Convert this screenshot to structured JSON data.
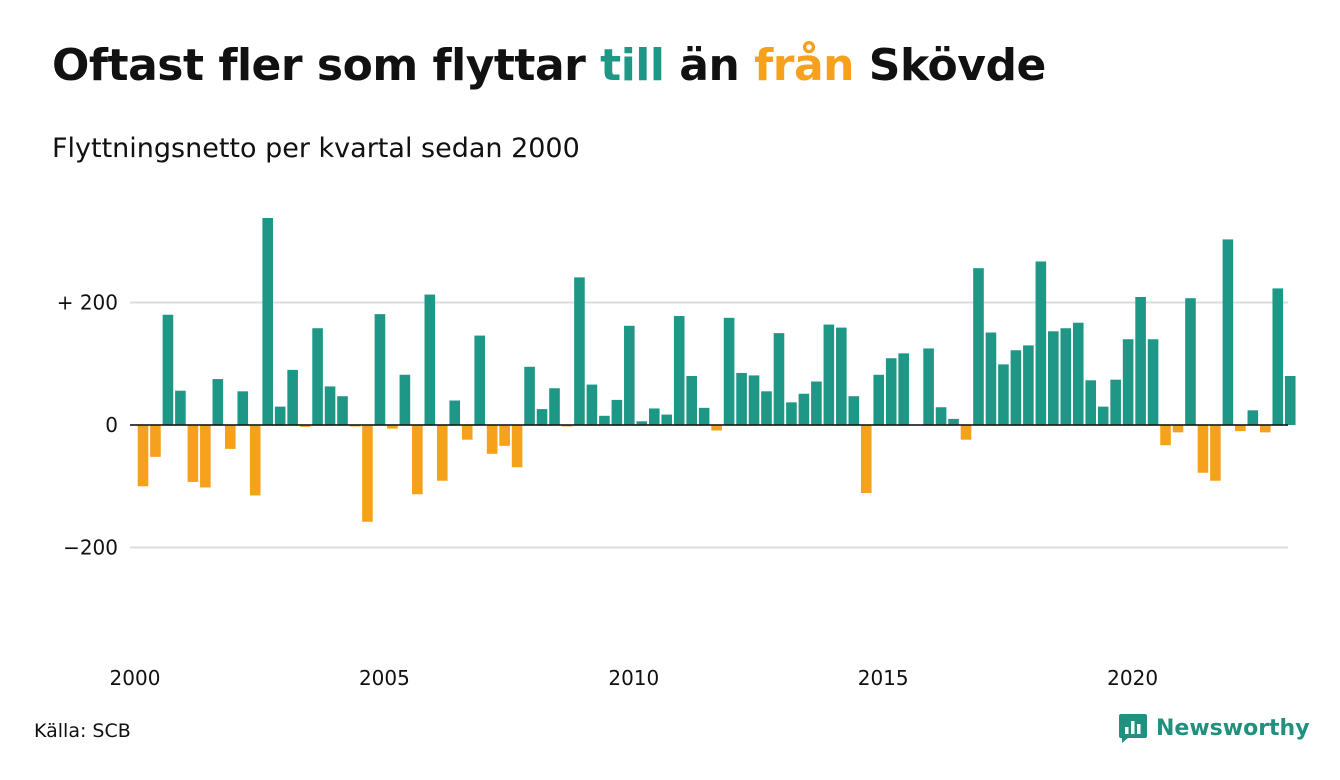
{
  "header": {
    "title_part1": "Oftast fler som flyttar ",
    "title_till": "till",
    "title_part2": " än ",
    "title_fran": "från",
    "title_part3": " Skövde",
    "subtitle": "Flyttningsnetto per kvartal sedan 2000"
  },
  "colors": {
    "positive": "#1f9786",
    "negative": "#f5a11c",
    "grid": "#dcdce0",
    "zero_line": "#111111"
  },
  "chart_data": {
    "type": "bar",
    "title": "Oftast fler som flyttar till än från Skövde",
    "subtitle": "Flyttningsnetto per kvartal sedan 2000",
    "xlabel": "",
    "ylabel": "",
    "x_start": "2000 Q1",
    "x_ticks": [
      "2000",
      "2005",
      "2010",
      "2015",
      "2020"
    ],
    "y_ticks": [
      {
        "value": 200,
        "label": "+ 200"
      },
      {
        "value": 0,
        "label": "0"
      },
      {
        "value": -200,
        "label": "−200"
      }
    ],
    "ylim": [
      -350,
      360
    ],
    "grid": true,
    "values": [
      -100,
      -52,
      180,
      56,
      -93,
      -102,
      75,
      -39,
      55,
      -115,
      338,
      30,
      90,
      -3,
      158,
      63,
      47,
      -1,
      -158,
      181,
      -6,
      82,
      -113,
      213,
      -91,
      40,
      -24,
      146,
      -47,
      -34,
      -69,
      95,
      26,
      60,
      -2,
      241,
      66,
      15,
      41,
      162,
      6,
      27,
      17,
      178,
      80,
      28,
      -9,
      175,
      85,
      81,
      55,
      150,
      37,
      51,
      71,
      164,
      159,
      47,
      -111,
      82,
      109,
      117,
      0,
      125,
      29,
      10,
      -24,
      256,
      151,
      99,
      122,
      130,
      267,
      153,
      158,
      167,
      73,
      30,
      74,
      140,
      209,
      140,
      -33,
      -12,
      207,
      -78,
      -91,
      303,
      -10,
      24,
      -12,
      223,
      80
    ]
  },
  "footer": {
    "source": "Källa: SCB",
    "brand": "Newsworthy"
  }
}
